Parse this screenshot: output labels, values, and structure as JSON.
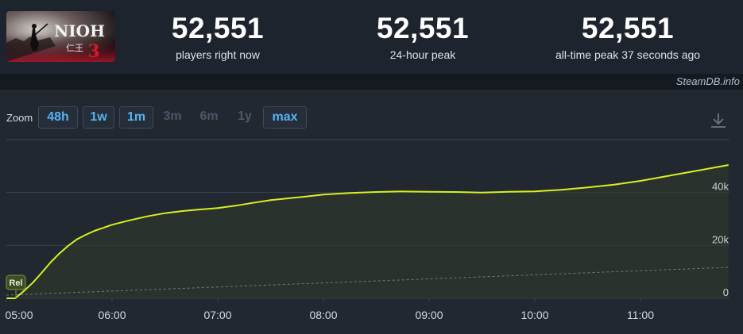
{
  "game": {
    "logo_text": "NIOH",
    "logo_subtext": "仁王",
    "logo_number": "3"
  },
  "stats": [
    {
      "value": "52,551",
      "label": "players right now"
    },
    {
      "value": "52,551",
      "label": "24-hour peak"
    },
    {
      "value": "52,551",
      "label": "all-time peak 37 seconds ago"
    }
  ],
  "brand": "SteamDB.info",
  "zoom": {
    "label": "Zoom",
    "options": [
      {
        "label": "48h",
        "enabled": true
      },
      {
        "label": "1w",
        "enabled": true
      },
      {
        "label": "1m",
        "enabled": true
      },
      {
        "label": "3m",
        "enabled": false
      },
      {
        "label": "6m",
        "enabled": false
      },
      {
        "label": "1y",
        "enabled": false
      },
      {
        "label": "max",
        "enabled": true
      }
    ]
  },
  "icons": {
    "download": "download-icon"
  },
  "colors": {
    "players_line": "#d7f022",
    "secondary_line": "#6f7a86",
    "grid": "#3a424d",
    "active_button_text": "#56b4f5",
    "disabled_button_text": "#4a5868"
  },
  "chart_data": {
    "type": "line",
    "x_tick_labels": [
      "05:00",
      "06:00",
      "07:00",
      "08:00",
      "09:00",
      "10:00",
      "11:00"
    ],
    "y_tick_labels": [
      "0",
      "20k",
      "40k"
    ],
    "ylim": [
      0,
      60000
    ],
    "grid": true,
    "annotation": "Rel",
    "series": [
      {
        "x": [
          "04:55",
          "05:05",
          "05:10",
          "05:15",
          "05:20",
          "05:25",
          "05:30",
          "05:35",
          "05:40",
          "05:45",
          "05:50",
          "06:00",
          "06:10",
          "06:20",
          "06:30",
          "06:40",
          "06:50",
          "07:00",
          "07:10",
          "07:20",
          "07:30",
          "07:40",
          "07:50",
          "08:00",
          "08:15",
          "08:30",
          "08:45",
          "09:00",
          "09:15",
          "09:30",
          "09:45",
          "10:00",
          "10:15",
          "10:30",
          "10:45",
          "11:00",
          "11:10",
          "11:20",
          "11:30",
          "11:40",
          "11:50"
        ],
        "values": [
          0,
          0,
          2800,
          5900,
          9600,
          13500,
          16900,
          19800,
          22300,
          24000,
          25500,
          27800,
          29500,
          31000,
          32200,
          33000,
          33600,
          34100,
          35000,
          36100,
          37100,
          37800,
          38500,
          39200,
          39800,
          40200,
          40400,
          40300,
          40200,
          40000,
          40300,
          40400,
          41000,
          41900,
          43000,
          44400,
          45600,
          46800,
          48000,
          49200,
          50400
        ]
      },
      {
        "x": [
          "04:55",
          "11:50"
        ],
        "values": [
          1200,
          11700
        ]
      }
    ]
  }
}
